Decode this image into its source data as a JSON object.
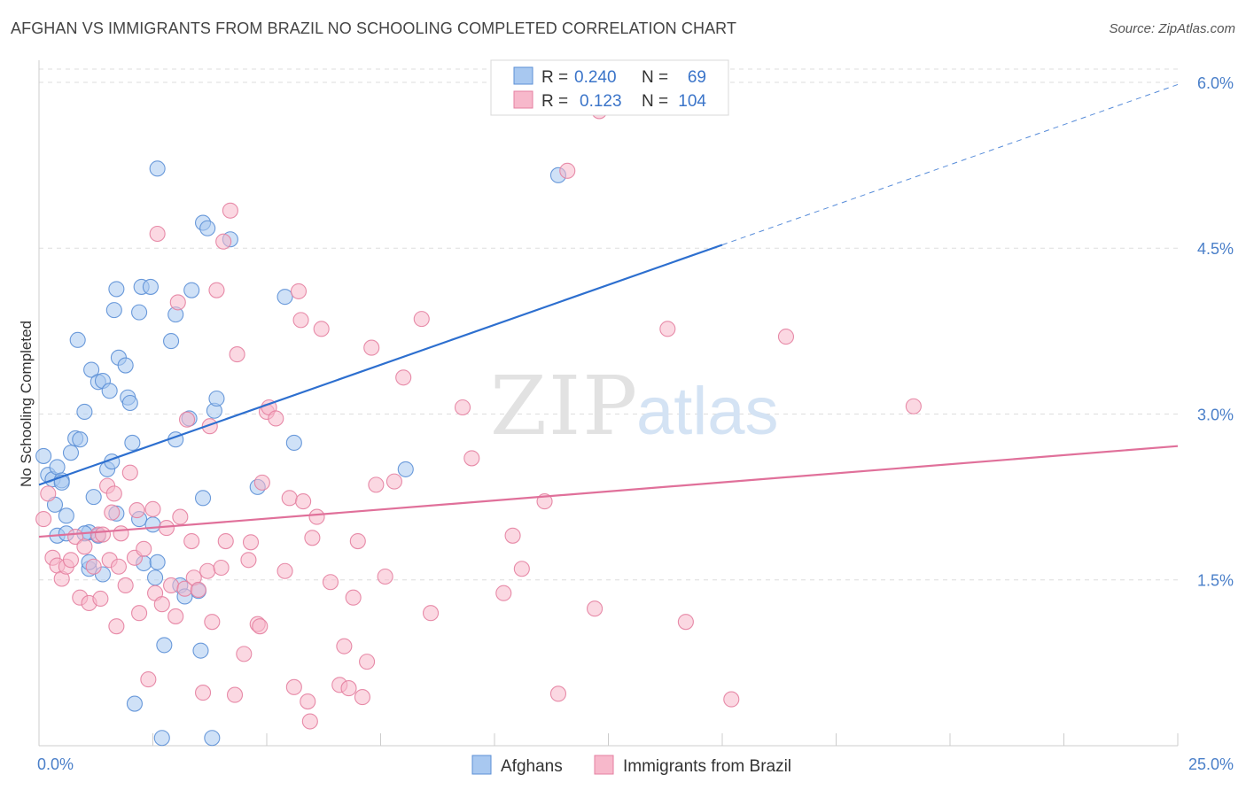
{
  "header": {
    "title": "AFGHAN VS IMMIGRANTS FROM BRAZIL NO SCHOOLING COMPLETED CORRELATION CHART",
    "source": "Source: ZipAtlas.com"
  },
  "watermark": {
    "zip": "ZIP",
    "atlas": "atlas"
  },
  "colors": {
    "afghan_fill": "#a8c8f0",
    "afghan_stroke": "#5b8fd6",
    "afghan_line": "#2d6fcf",
    "brazil_fill": "#f7b8cb",
    "brazil_stroke": "#e47fa0",
    "brazil_line": "#e0709a",
    "tick_label": "#4a7fc9",
    "grid": "#dddddd"
  },
  "legend_top": {
    "rows": [
      {
        "r_label": "R =",
        "r_value": "0.240",
        "n_label": "N =",
        "n_value": "69"
      },
      {
        "r_label": "R =",
        "r_value": "0.123",
        "n_label": "N =",
        "n_value": "104"
      }
    ]
  },
  "legend_bottom": {
    "items": [
      "Afghans",
      "Immigrants from Brazil"
    ]
  },
  "chart_data": {
    "type": "scatter",
    "title": "AFGHAN VS IMMIGRANTS FROM BRAZIL NO SCHOOLING COMPLETED CORRELATION CHART",
    "xlabel": "",
    "ylabel": "No Schooling Completed",
    "xlim": [
      0,
      25
    ],
    "ylim": [
      0,
      6.2
    ],
    "x_tick_labels": [
      "0.0%",
      "25.0%"
    ],
    "y_ticks": [
      1.5,
      3.0,
      4.5,
      6.0
    ],
    "y_tick_labels": [
      "1.5%",
      "3.0%",
      "4.5%",
      "6.0%"
    ],
    "grid": true,
    "legend_position": "top-center",
    "series": [
      {
        "name": "Afghans",
        "r": 0.24,
        "n": 69,
        "trend": {
          "x": [
            0,
            15.0
          ],
          "y": [
            2.36,
            4.53
          ],
          "extension_x": [
            15.0,
            25.0
          ],
          "extension_y": [
            4.53,
            5.98
          ]
        },
        "points": [
          [
            0.1,
            2.62
          ],
          [
            0.2,
            2.45
          ],
          [
            0.3,
            2.41
          ],
          [
            0.4,
            2.52
          ],
          [
            0.35,
            2.18
          ],
          [
            0.5,
            2.4
          ],
          [
            0.6,
            2.08
          ],
          [
            0.7,
            2.65
          ],
          [
            0.4,
            1.9
          ],
          [
            0.8,
            2.78
          ],
          [
            0.9,
            2.77
          ],
          [
            0.85,
            3.67
          ],
          [
            1.0,
            3.02
          ],
          [
            1.1,
            1.93
          ],
          [
            0.6,
            1.92
          ],
          [
            1.1,
            1.6
          ],
          [
            1.1,
            1.66
          ],
          [
            1.3,
            1.9
          ],
          [
            1.2,
            2.25
          ],
          [
            1.4,
            1.55
          ],
          [
            1.15,
            3.4
          ],
          [
            1.3,
            3.29
          ],
          [
            1.4,
            3.3
          ],
          [
            1.5,
            2.5
          ],
          [
            1.55,
            3.21
          ],
          [
            1.6,
            2.57
          ],
          [
            1.7,
            2.1
          ],
          [
            1.75,
            3.51
          ],
          [
            1.9,
            3.44
          ],
          [
            1.95,
            3.15
          ],
          [
            2.0,
            3.1
          ],
          [
            2.05,
            2.74
          ],
          [
            1.7,
            4.13
          ],
          [
            1.65,
            3.94
          ],
          [
            2.2,
            2.05
          ],
          [
            2.1,
            0.38
          ],
          [
            2.3,
            1.65
          ],
          [
            2.2,
            3.92
          ],
          [
            2.25,
            4.15
          ],
          [
            2.45,
            4.15
          ],
          [
            2.5,
            2.0
          ],
          [
            2.55,
            1.52
          ],
          [
            2.6,
            1.66
          ],
          [
            2.6,
            5.22
          ],
          [
            2.7,
            0.07
          ],
          [
            2.75,
            0.91
          ],
          [
            2.9,
            3.66
          ],
          [
            3.0,
            2.77
          ],
          [
            3.0,
            3.9
          ],
          [
            3.1,
            1.45
          ],
          [
            3.2,
            1.35
          ],
          [
            3.3,
            2.96
          ],
          [
            3.35,
            4.12
          ],
          [
            3.5,
            1.4
          ],
          [
            3.55,
            0.86
          ],
          [
            3.6,
            2.24
          ],
          [
            3.6,
            4.73
          ],
          [
            3.7,
            4.68
          ],
          [
            3.8,
            0.07
          ],
          [
            3.85,
            3.03
          ],
          [
            3.9,
            3.14
          ],
          [
            4.2,
            4.58
          ],
          [
            4.8,
            2.34
          ],
          [
            5.4,
            4.06
          ],
          [
            5.6,
            2.74
          ],
          [
            8.05,
            2.5
          ],
          [
            11.4,
            5.16
          ],
          [
            1.0,
            1.92
          ],
          [
            0.5,
            2.38
          ]
        ]
      },
      {
        "name": "Immigrants from Brazil",
        "r": 0.123,
        "n": 104,
        "trend": {
          "x": [
            0,
            25.0
          ],
          "y": [
            1.89,
            2.71
          ]
        },
        "points": [
          [
            0.1,
            2.05
          ],
          [
            0.2,
            2.28
          ],
          [
            0.3,
            1.7
          ],
          [
            0.4,
            1.63
          ],
          [
            0.5,
            1.51
          ],
          [
            0.6,
            1.62
          ],
          [
            0.7,
            1.68
          ],
          [
            0.8,
            1.89
          ],
          [
            0.9,
            1.34
          ],
          [
            1.0,
            1.8
          ],
          [
            1.1,
            1.29
          ],
          [
            1.2,
            1.62
          ],
          [
            1.3,
            1.91
          ],
          [
            1.35,
            1.33
          ],
          [
            1.4,
            1.91
          ],
          [
            1.5,
            2.35
          ],
          [
            1.55,
            1.68
          ],
          [
            1.6,
            2.11
          ],
          [
            1.65,
            2.28
          ],
          [
            1.7,
            1.08
          ],
          [
            1.75,
            1.62
          ],
          [
            1.8,
            1.92
          ],
          [
            1.9,
            1.45
          ],
          [
            2.0,
            2.47
          ],
          [
            2.1,
            1.7
          ],
          [
            2.15,
            2.13
          ],
          [
            2.2,
            1.2
          ],
          [
            2.3,
            1.78
          ],
          [
            2.4,
            0.6
          ],
          [
            2.5,
            2.14
          ],
          [
            2.55,
            1.38
          ],
          [
            2.6,
            4.63
          ],
          [
            2.7,
            1.28
          ],
          [
            2.8,
            1.97
          ],
          [
            2.9,
            1.45
          ],
          [
            3.0,
            1.17
          ],
          [
            3.05,
            4.01
          ],
          [
            3.1,
            2.07
          ],
          [
            3.2,
            1.42
          ],
          [
            3.25,
            2.95
          ],
          [
            3.35,
            1.85
          ],
          [
            3.4,
            1.52
          ],
          [
            3.5,
            1.41
          ],
          [
            3.6,
            0.48
          ],
          [
            3.7,
            1.58
          ],
          [
            3.75,
            2.89
          ],
          [
            3.8,
            1.12
          ],
          [
            3.9,
            4.12
          ],
          [
            4.0,
            1.61
          ],
          [
            4.05,
            4.56
          ],
          [
            4.1,
            1.85
          ],
          [
            4.2,
            4.84
          ],
          [
            4.3,
            0.46
          ],
          [
            4.35,
            3.54
          ],
          [
            4.5,
            0.83
          ],
          [
            4.6,
            1.68
          ],
          [
            4.65,
            1.84
          ],
          [
            4.8,
            1.1
          ],
          [
            4.85,
            1.08
          ],
          [
            4.9,
            2.38
          ],
          [
            5.0,
            3.02
          ],
          [
            5.05,
            3.06
          ],
          [
            5.2,
            2.96
          ],
          [
            5.4,
            1.58
          ],
          [
            5.5,
            2.24
          ],
          [
            5.6,
            0.53
          ],
          [
            5.7,
            4.11
          ],
          [
            5.75,
            3.85
          ],
          [
            5.8,
            2.21
          ],
          [
            5.9,
            0.4
          ],
          [
            5.95,
            0.22
          ],
          [
            6.0,
            1.88
          ],
          [
            6.1,
            2.07
          ],
          [
            6.2,
            3.77
          ],
          [
            6.4,
            1.48
          ],
          [
            6.6,
            0.55
          ],
          [
            6.7,
            0.9
          ],
          [
            6.8,
            0.52
          ],
          [
            6.9,
            1.34
          ],
          [
            7.0,
            1.85
          ],
          [
            7.1,
            0.44
          ],
          [
            7.2,
            0.76
          ],
          [
            7.3,
            3.6
          ],
          [
            7.4,
            2.36
          ],
          [
            7.6,
            1.53
          ],
          [
            7.8,
            2.39
          ],
          [
            8.0,
            3.33
          ],
          [
            8.4,
            3.86
          ],
          [
            8.6,
            1.2
          ],
          [
            9.3,
            3.06
          ],
          [
            9.5,
            2.6
          ],
          [
            10.2,
            1.38
          ],
          [
            10.4,
            1.9
          ],
          [
            10.6,
            1.6
          ],
          [
            11.1,
            2.21
          ],
          [
            11.4,
            0.47
          ],
          [
            11.6,
            5.2
          ],
          [
            12.2,
            1.24
          ],
          [
            12.3,
            5.74
          ],
          [
            13.8,
            3.77
          ],
          [
            14.2,
            1.12
          ],
          [
            15.2,
            0.42
          ],
          [
            16.4,
            3.7
          ],
          [
            19.2,
            3.07
          ]
        ]
      }
    ]
  }
}
